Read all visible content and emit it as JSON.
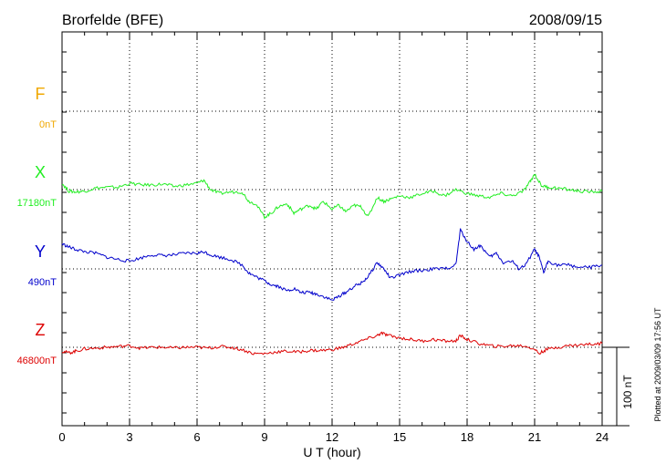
{
  "chart_data": {
    "type": "line",
    "title_left": "Brorfelde (BFE)",
    "title_right": "2008/09/15",
    "xlabel": "U T (hour)",
    "xlim": [
      0,
      24
    ],
    "xticks": [
      0,
      3,
      6,
      9,
      12,
      15,
      18,
      21,
      24
    ],
    "grid": true,
    "scale_bar_label": "100 nT",
    "scale_bar_nT": 100,
    "footnote": "Plotted at 2009/03/09 17:56 UT",
    "series": [
      {
        "name": "F",
        "baseline_label": "0nT",
        "color": "#f0a800",
        "x": [],
        "y": []
      },
      {
        "name": "X",
        "baseline_label": "17180nT",
        "color": "#22ee22",
        "x": [
          0,
          0.3,
          0.6,
          1,
          1.5,
          2,
          2.5,
          3,
          3.5,
          4,
          4.5,
          5,
          5.5,
          6,
          6.3,
          6.6,
          7,
          7.5,
          8,
          8.3,
          8.6,
          9,
          9.3,
          9.6,
          10,
          10.3,
          10.6,
          11,
          11.3,
          11.6,
          12,
          12.3,
          12.6,
          13,
          13.3,
          13.6,
          14,
          14.3,
          14.6,
          15,
          15.5,
          16,
          16.5,
          17,
          17.5,
          18,
          18.5,
          19,
          19.5,
          20,
          20.5,
          20.8,
          21,
          21.3,
          21.6,
          22,
          22.5,
          23,
          23.5,
          24
        ],
        "y": [
          8,
          -2,
          -3,
          -2,
          2,
          3,
          3,
          8,
          6,
          6,
          7,
          4,
          6,
          8,
          12,
          0,
          -5,
          -3,
          -3,
          -15,
          -18,
          -35,
          -30,
          -22,
          -18,
          -30,
          -25,
          -20,
          -25,
          -15,
          -25,
          -20,
          -28,
          -20,
          -22,
          -35,
          -10,
          -15,
          -12,
          -8,
          -10,
          -5,
          -2,
          -8,
          0,
          -5,
          -8,
          -10,
          -5,
          -8,
          -2,
          10,
          20,
          5,
          3,
          2,
          0,
          -2,
          -3,
          -2
        ]
      },
      {
        "name": "Y",
        "baseline_label": "490nT",
        "color": "#0000cc",
        "x": [
          0,
          0.3,
          0.6,
          1,
          1.5,
          2,
          2.5,
          3,
          3.5,
          4,
          4.5,
          5,
          5.5,
          6,
          6.3,
          6.6,
          7,
          7.5,
          8,
          8.3,
          8.6,
          9,
          9.3,
          9.6,
          10,
          10.3,
          10.6,
          11,
          11.3,
          11.6,
          12,
          12.3,
          12.6,
          13,
          13.3,
          13.6,
          14,
          14.3,
          14.6,
          15,
          15.5,
          16,
          16.5,
          17,
          17.5,
          17.7,
          18,
          18.3,
          18.6,
          19,
          19.3,
          19.6,
          20,
          20.3,
          20.6,
          21,
          21.2,
          21.4,
          21.6,
          22,
          22.5,
          23,
          23.5,
          24
        ],
        "y": [
          32,
          28,
          25,
          22,
          20,
          15,
          12,
          10,
          14,
          18,
          17,
          18,
          20,
          20,
          22,
          18,
          15,
          12,
          5,
          -5,
          -10,
          -15,
          -20,
          -22,
          -28,
          -25,
          -30,
          -30,
          -32,
          -35,
          -40,
          -35,
          -30,
          -22,
          -18,
          -10,
          8,
          0,
          -12,
          -8,
          -3,
          -2,
          0,
          0,
          5,
          50,
          35,
          25,
          30,
          15,
          20,
          8,
          10,
          0,
          5,
          25,
          15,
          -5,
          10,
          5,
          5,
          2,
          2,
          5
        ]
      },
      {
        "name": "Z",
        "baseline_label": "46800nT",
        "color": "#dd0000",
        "x": [
          0,
          0.3,
          0.6,
          1,
          1.5,
          2,
          2.5,
          3,
          3.5,
          4,
          4.5,
          5,
          5.5,
          6,
          6.5,
          7,
          7.5,
          8,
          8.5,
          9,
          9.5,
          10,
          10.5,
          11,
          11.5,
          12,
          12.5,
          13,
          13.5,
          14,
          14.2,
          14.5,
          15,
          15.5,
          16,
          16.5,
          17,
          17.5,
          17.7,
          18,
          18.5,
          19,
          19.5,
          20,
          20.5,
          21,
          21.2,
          21.5,
          22,
          22.5,
          23,
          23.5,
          24
        ],
        "y": [
          -5,
          -7,
          -5,
          -2,
          -1,
          0,
          1,
          2,
          -1,
          0,
          0,
          -1,
          0,
          0,
          -1,
          1,
          0,
          -3,
          -8,
          -8,
          -6,
          -5,
          -6,
          -4,
          -4,
          -3,
          0,
          5,
          10,
          15,
          18,
          15,
          12,
          10,
          8,
          10,
          8,
          8,
          15,
          10,
          5,
          2,
          1,
          2,
          2,
          -2,
          -8,
          -3,
          0,
          2,
          3,
          4,
          5
        ]
      }
    ]
  }
}
